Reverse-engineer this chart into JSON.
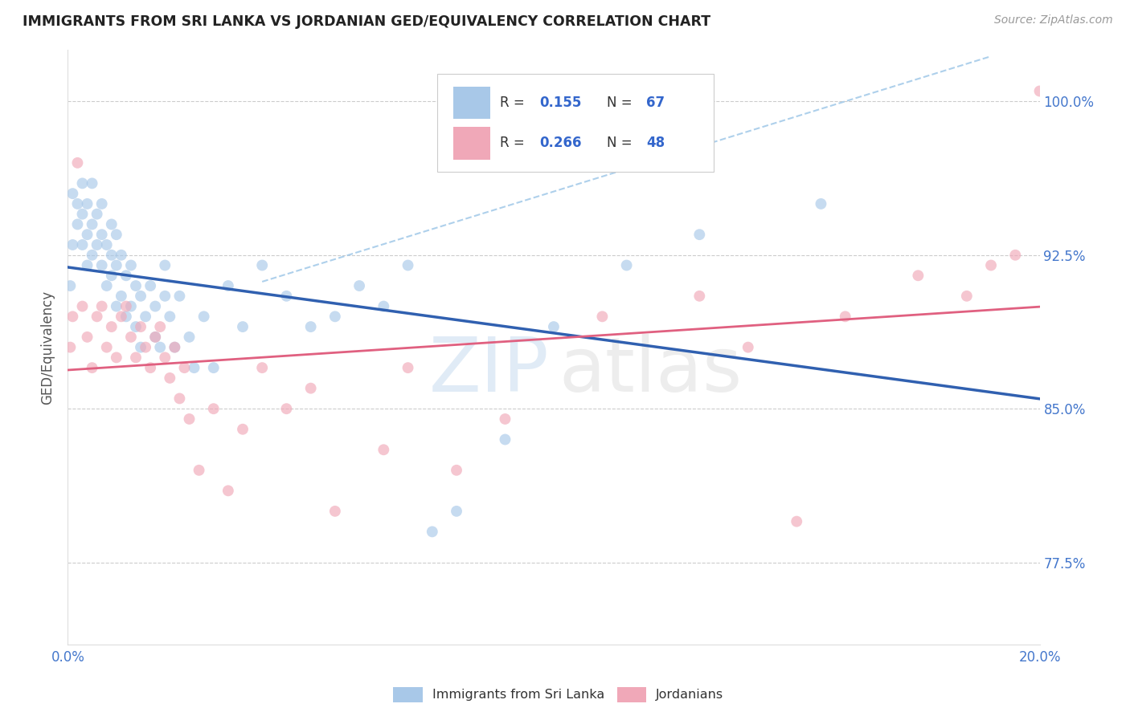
{
  "title": "IMMIGRANTS FROM SRI LANKA VS JORDANIAN GED/EQUIVALENCY CORRELATION CHART",
  "source": "Source: ZipAtlas.com",
  "ylabel": "GED/Equivalency",
  "yticks": [
    77.5,
    85.0,
    92.5,
    100.0
  ],
  "xlim": [
    0.0,
    0.2
  ],
  "ylim": [
    0.735,
    1.025
  ],
  "blue_color": "#A8C8E8",
  "pink_color": "#F0A8B8",
  "trend_blue": "#3060B0",
  "trend_pink": "#E06080",
  "trend_dashed_blue": "#A0C8E8",
  "sri_lanka_x": [
    0.0005,
    0.001,
    0.001,
    0.002,
    0.002,
    0.003,
    0.003,
    0.003,
    0.004,
    0.004,
    0.004,
    0.005,
    0.005,
    0.005,
    0.006,
    0.006,
    0.007,
    0.007,
    0.007,
    0.008,
    0.008,
    0.009,
    0.009,
    0.009,
    0.01,
    0.01,
    0.01,
    0.011,
    0.011,
    0.012,
    0.012,
    0.013,
    0.013,
    0.014,
    0.014,
    0.015,
    0.015,
    0.016,
    0.017,
    0.018,
    0.018,
    0.019,
    0.02,
    0.02,
    0.021,
    0.022,
    0.023,
    0.025,
    0.026,
    0.028,
    0.03,
    0.033,
    0.036,
    0.04,
    0.045,
    0.05,
    0.055,
    0.06,
    0.065,
    0.07,
    0.075,
    0.08,
    0.09,
    0.1,
    0.115,
    0.13,
    0.155
  ],
  "sri_lanka_y": [
    0.91,
    0.93,
    0.955,
    0.94,
    0.95,
    0.93,
    0.945,
    0.96,
    0.92,
    0.935,
    0.95,
    0.925,
    0.94,
    0.96,
    0.93,
    0.945,
    0.92,
    0.935,
    0.95,
    0.91,
    0.93,
    0.915,
    0.925,
    0.94,
    0.9,
    0.92,
    0.935,
    0.905,
    0.925,
    0.895,
    0.915,
    0.9,
    0.92,
    0.89,
    0.91,
    0.88,
    0.905,
    0.895,
    0.91,
    0.885,
    0.9,
    0.88,
    0.905,
    0.92,
    0.895,
    0.88,
    0.905,
    0.885,
    0.87,
    0.895,
    0.87,
    0.91,
    0.89,
    0.92,
    0.905,
    0.89,
    0.895,
    0.91,
    0.9,
    0.92,
    0.79,
    0.8,
    0.835,
    0.89,
    0.92,
    0.935,
    0.95
  ],
  "jordanian_x": [
    0.0005,
    0.001,
    0.002,
    0.003,
    0.004,
    0.005,
    0.006,
    0.007,
    0.008,
    0.009,
    0.01,
    0.011,
    0.012,
    0.013,
    0.014,
    0.015,
    0.016,
    0.017,
    0.018,
    0.019,
    0.02,
    0.021,
    0.022,
    0.023,
    0.024,
    0.025,
    0.027,
    0.03,
    0.033,
    0.036,
    0.04,
    0.045,
    0.05,
    0.055,
    0.065,
    0.07,
    0.08,
    0.09,
    0.11,
    0.13,
    0.14,
    0.15,
    0.16,
    0.175,
    0.185,
    0.19,
    0.195,
    0.2
  ],
  "jordanian_y": [
    0.88,
    0.895,
    0.97,
    0.9,
    0.885,
    0.87,
    0.895,
    0.9,
    0.88,
    0.89,
    0.875,
    0.895,
    0.9,
    0.885,
    0.875,
    0.89,
    0.88,
    0.87,
    0.885,
    0.89,
    0.875,
    0.865,
    0.88,
    0.855,
    0.87,
    0.845,
    0.82,
    0.85,
    0.81,
    0.84,
    0.87,
    0.85,
    0.86,
    0.8,
    0.83,
    0.87,
    0.82,
    0.845,
    0.895,
    0.905,
    0.88,
    0.795,
    0.895,
    0.915,
    0.905,
    0.92,
    0.925,
    1.005
  ]
}
